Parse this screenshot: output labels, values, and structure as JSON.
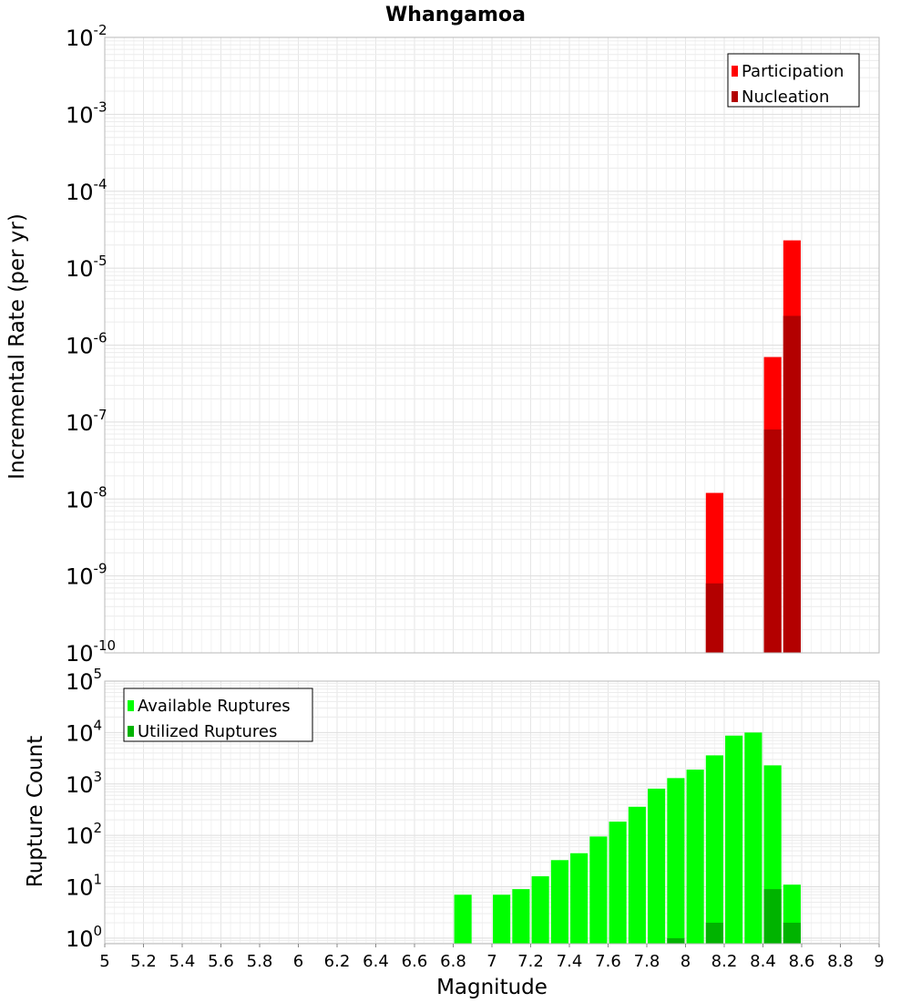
{
  "chart_data": [
    {
      "type": "bar",
      "title": "Whangamoa",
      "xlabel": "",
      "ylabel": "Incremental Rate (per yr)",
      "yscale": "log",
      "ylim": [
        1e-10,
        0.01
      ],
      "xlim": [
        5,
        9
      ],
      "grid": true,
      "legend_position": "top-right",
      "bar_width": 0.09,
      "series": [
        {
          "name": "Participation",
          "color": "#ff0000",
          "x": [
            8.15,
            8.45,
            8.55
          ],
          "values": [
            1.2e-08,
            7e-07,
            2.3e-05
          ]
        },
        {
          "name": "Nucleation",
          "color": "#b30000",
          "x": [
            8.15,
            8.45,
            8.55
          ],
          "values": [
            8e-10,
            8e-08,
            2.4e-06
          ]
        }
      ]
    },
    {
      "type": "bar",
      "title": "",
      "xlabel": "Magnitude",
      "ylabel": "Rupture Count",
      "yscale": "log",
      "ylim": [
        0.78,
        100000
      ],
      "xlim": [
        5,
        9
      ],
      "grid": true,
      "legend_position": "top-left",
      "bar_width": 0.09,
      "series": [
        {
          "name": "Available Ruptures",
          "color": "#00ff00",
          "x": [
            6.85,
            7.05,
            7.15,
            7.25,
            7.35,
            7.45,
            7.55,
            7.65,
            7.75,
            7.85,
            7.95,
            8.05,
            8.15,
            8.25,
            8.35,
            8.45,
            8.55
          ],
          "values": [
            7,
            7,
            9,
            16,
            33,
            45,
            95,
            185,
            360,
            810,
            1300,
            1900,
            3600,
            8700,
            10000,
            2300,
            11
          ]
        },
        {
          "name": "Utilized Ruptures",
          "color": "#00b300",
          "x": [
            7.95,
            8.15,
            8.45,
            8.55
          ],
          "values": [
            1,
            2,
            9,
            2
          ]
        }
      ]
    }
  ],
  "x_ticks": [
    "5",
    "5.2",
    "5.4",
    "5.6",
    "5.8",
    "6",
    "6.2",
    "6.4",
    "6.6",
    "6.8",
    "7",
    "7.2",
    "7.4",
    "7.6",
    "7.8",
    "8",
    "8.2",
    "8.4",
    "8.6",
    "8.8",
    "9"
  ],
  "top_y_ticks": [
    {
      "base": "10",
      "exp": "-2"
    },
    {
      "base": "10",
      "exp": "-3"
    },
    {
      "base": "10",
      "exp": "-4"
    },
    {
      "base": "10",
      "exp": "-5"
    },
    {
      "base": "10",
      "exp": "-6"
    },
    {
      "base": "10",
      "exp": "-7"
    },
    {
      "base": "10",
      "exp": "-8"
    },
    {
      "base": "10",
      "exp": "-9"
    },
    {
      "base": "10",
      "exp": "-10"
    }
  ],
  "bottom_y_ticks": [
    {
      "base": "10",
      "exp": "5"
    },
    {
      "base": "10",
      "exp": "4"
    },
    {
      "base": "10",
      "exp": "3"
    },
    {
      "base": "10",
      "exp": "2"
    },
    {
      "base": "10",
      "exp": "1"
    },
    {
      "base": "10",
      "exp": "0"
    }
  ]
}
